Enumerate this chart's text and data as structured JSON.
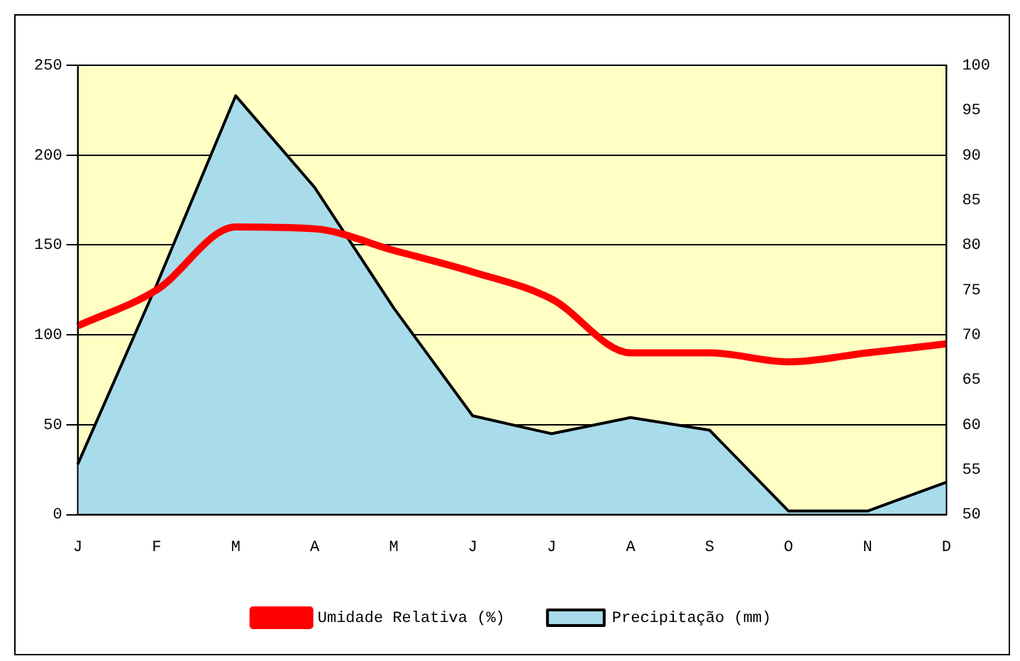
{
  "chart_data": {
    "type": "area",
    "categories": [
      "J",
      "F",
      "M",
      "A",
      "M",
      "J",
      "J",
      "A",
      "S",
      "O",
      "N",
      "D"
    ],
    "series": [
      {
        "name": "Precipitação (mm)",
        "type": "area",
        "color": "#a8dcea",
        "values": [
          28,
          128,
          233,
          182,
          115,
          55,
          45,
          54,
          47,
          2,
          2,
          18
        ]
      },
      {
        "name": "Umidade Relativa (%)",
        "type": "line",
        "axis": "y2",
        "color": "#ff0000",
        "values": [
          71,
          75,
          82,
          81.8,
          79.4,
          77,
          74,
          68,
          68,
          67,
          68,
          69
        ]
      }
    ],
    "ylim": [
      0,
      250
    ],
    "yticks": [
      0,
      50,
      100,
      150,
      200,
      250
    ],
    "y2lim": [
      50,
      100
    ],
    "y2ticks": [
      50,
      55,
      60,
      65,
      70,
      75,
      80,
      85,
      90,
      95,
      100
    ],
    "grid": "y",
    "legend": "bottom",
    "marker": "none",
    "line_style": "solid"
  }
}
